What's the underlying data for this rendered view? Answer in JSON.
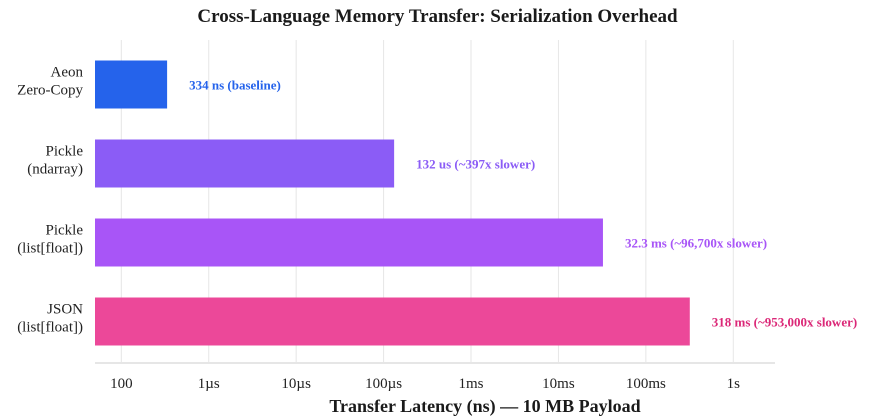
{
  "chart_data": {
    "type": "bar",
    "orientation": "horizontal",
    "title": "Cross-Language Memory Transfer: Serialization Overhead",
    "xlabel": "Transfer Latency (ns) — 10 MB Payload",
    "ylabel": "",
    "xscale": "log",
    "xlim": [
      50,
      3000000000
    ],
    "x_ticks": [
      {
        "value": 100,
        "label": "100"
      },
      {
        "value": 1000,
        "label": "1µs"
      },
      {
        "value": 10000,
        "label": "10µs"
      },
      {
        "value": 100000,
        "label": "100µs"
      },
      {
        "value": 1000000,
        "label": "1ms"
      },
      {
        "value": 10000000,
        "label": "10ms"
      },
      {
        "value": 100000000,
        "label": "100ms"
      },
      {
        "value": 1000000000,
        "label": "1s"
      }
    ],
    "grid": "vertical",
    "categories": [
      [
        "Aeon",
        "Zero-Copy"
      ],
      [
        "Pickle",
        "(ndarray)"
      ],
      [
        "Pickle",
        "(list[float])"
      ],
      [
        "JSON",
        "(list[float])"
      ]
    ],
    "values": [
      334,
      132000,
      32300000,
      318000000
    ],
    "colors": [
      "#2563eb",
      "#8b5cf6",
      "#a855f7",
      "#ec4899"
    ],
    "label_colors": [
      "#2563eb",
      "#8b5cf6",
      "#a855f7",
      "#db2777"
    ],
    "data_labels": [
      "334 ns  (baseline)",
      "132 us  (~397x slower)",
      "32.3 ms  (~96,700x slower)",
      "318 ms  (~953,000x slower)"
    ]
  }
}
